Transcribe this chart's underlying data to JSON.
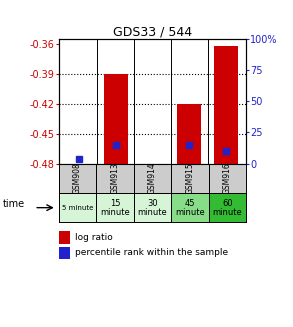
{
  "title": "GDS33 / 544",
  "samples": [
    "GSM908",
    "GSM913",
    "GSM914",
    "GSM915",
    "GSM916"
  ],
  "time_labels": [
    "5 minute",
    "15\nminute",
    "30\nminute",
    "45\nminute",
    "60\nminute"
  ],
  "time_colors": [
    "#d6f5d6",
    "#d6f5d6",
    "#d6f5d6",
    "#88dd88",
    "#33bb33"
  ],
  "sample_bg_colors": [
    "#cccccc",
    "#cccccc",
    "#cccccc",
    "#cccccc",
    "#cccccc"
  ],
  "log_ratio": [
    null,
    -0.39,
    null,
    -0.42,
    -0.362
  ],
  "log_ratio_bottom": [
    -0.48,
    -0.48,
    -0.48,
    -0.48,
    -0.48
  ],
  "percentile_rank_pct": [
    4,
    15,
    null,
    15,
    10
  ],
  "ylim_left": [
    -0.48,
    -0.355
  ],
  "ylim_right": [
    0,
    100
  ],
  "yticks_left": [
    -0.48,
    -0.45,
    -0.42,
    -0.39,
    -0.36
  ],
  "yticks_right": [
    0,
    25,
    50,
    75,
    100
  ],
  "left_axis_color": "#cc0000",
  "right_axis_color": "#2222cc",
  "bar_color": "#cc0000",
  "dot_color": "#2222cc",
  "background_color": "#ffffff"
}
